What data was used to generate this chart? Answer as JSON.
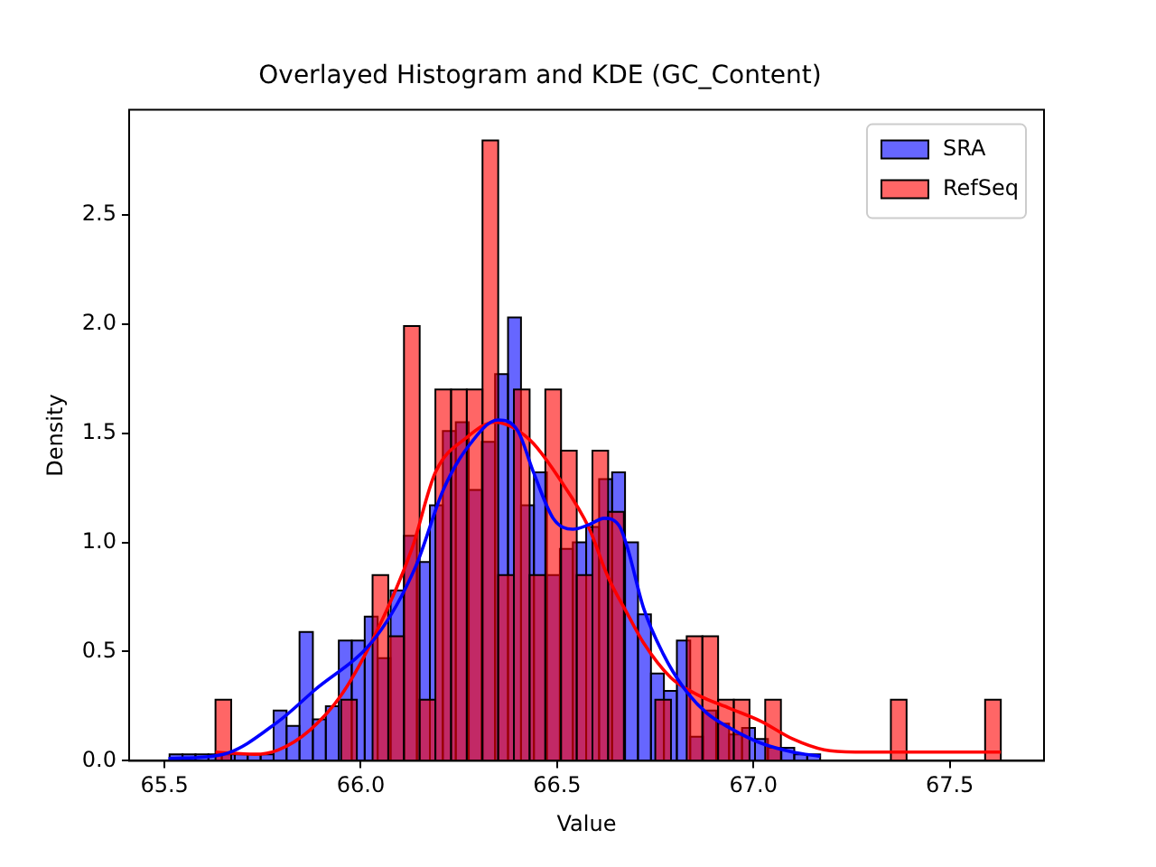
{
  "chart_data": {
    "type": "histogram",
    "title": "Overlayed Histogram and KDE (GC_Content)",
    "xlabel": "Value",
    "ylabel": "Density",
    "xlim": [
      65.41,
      67.74
    ],
    "ylim": [
      0,
      2.98
    ],
    "xticks": [
      {
        "value": 65.5,
        "label": "65.5"
      },
      {
        "value": 66,
        "label": "66.0"
      },
      {
        "value": 66.5,
        "label": "66.5"
      },
      {
        "value": 67,
        "label": "67.0"
      },
      {
        "value": 67.5,
        "label": "67.5"
      }
    ],
    "yticks": [
      {
        "value": 0,
        "label": "0.0"
      },
      {
        "value": 0.5,
        "label": "0.5"
      },
      {
        "value": 1,
        "label": "1.0"
      },
      {
        "value": 1.5,
        "label": "1.5"
      },
      {
        "value": 2,
        "label": "2.0"
      },
      {
        "value": 2.5,
        "label": "2.5"
      }
    ],
    "legend": "top right",
    "series": [
      {
        "name": "SRA",
        "type": "histogram",
        "color": "#0000ff",
        "bins": [
          65.513,
          65.546,
          65.579,
          65.612,
          65.646,
          65.679,
          65.712,
          65.745,
          65.778,
          65.811,
          65.844,
          65.878,
          65.911,
          65.944,
          65.977,
          66.01,
          66.043,
          66.076,
          66.11,
          66.143,
          66.176,
          66.209,
          66.242,
          66.275,
          66.308,
          66.342,
          66.375,
          66.408,
          66.441,
          66.474,
          66.507,
          66.54,
          66.574,
          66.607,
          66.64,
          66.673,
          66.706,
          66.739,
          66.772,
          66.805,
          66.839,
          66.872,
          66.905,
          66.938,
          66.971,
          67.004,
          67.037,
          67.071,
          67.104,
          67.137,
          67.17
        ],
        "values": [
          0.03,
          0.03,
          0.03,
          0.03,
          0.03,
          0.03,
          0.03,
          0.03,
          0.23,
          0.16,
          0.59,
          0.19,
          0.25,
          0.55,
          0.55,
          0.66,
          0.47,
          0.78,
          1.03,
          0.91,
          1.17,
          1.51,
          1.55,
          1.24,
          1.46,
          1.77,
          2.03,
          1.17,
          1.32,
          0.85,
          0.97,
          1.0,
          1.07,
          1.29,
          1.32,
          1.0,
          0.67,
          0.4,
          0.32,
          0.55,
          0.11,
          0.23,
          0.17,
          0.12,
          0.15,
          0.1,
          0.06,
          0.06,
          0.03,
          0.03
        ]
      },
      {
        "name": "RefSeq",
        "type": "histogram",
        "color": "#ff0000",
        "bins": [
          65.63,
          65.67,
          65.71,
          65.75,
          65.79,
          65.83,
          65.87,
          65.91,
          65.95,
          65.99,
          66.03,
          66.07,
          66.11,
          66.15,
          66.19,
          66.23,
          66.27,
          66.31,
          66.35,
          66.39,
          66.43,
          66.47,
          66.51,
          66.55,
          66.59,
          66.63,
          66.67,
          66.71,
          66.75,
          66.79,
          66.83,
          66.87,
          66.91,
          66.95,
          66.99,
          67.03,
          67.07,
          67.11,
          67.15,
          67.19,
          67.23,
          67.27,
          67.31,
          67.35,
          67.39,
          67.43,
          67.47,
          67.51,
          67.55,
          67.59,
          67.63
        ],
        "values": [
          0.28,
          0,
          0,
          0,
          0,
          0,
          0,
          0,
          0.28,
          0,
          0.85,
          0.57,
          1.99,
          0.28,
          1.7,
          1.7,
          1.7,
          2.84,
          0.85,
          1.7,
          0.85,
          1.7,
          1.42,
          0.85,
          1.42,
          1.14,
          0,
          0,
          0.28,
          0,
          0.57,
          0.57,
          0.28,
          0.28,
          0,
          0.28,
          0,
          0,
          0,
          0,
          0,
          0,
          0,
          0.28,
          0,
          0,
          0,
          0,
          0,
          0.28
        ]
      },
      {
        "type": "line",
        "color": "#0000ff",
        "x": [
          65.51,
          65.65,
          65.79,
          65.88,
          66.04,
          66.14,
          66.21,
          66.27,
          66.35,
          66.4,
          66.44,
          66.49,
          66.54,
          66.58,
          66.62,
          66.66,
          66.68,
          66.72,
          66.77,
          66.82,
          66.88,
          66.94,
          67.02,
          67.1,
          67.17
        ],
        "values": [
          0.01,
          0.03,
          0.18,
          0.32,
          0.57,
          0.89,
          1.24,
          1.43,
          1.56,
          1.51,
          1.32,
          1.11,
          1.06,
          1.08,
          1.11,
          1.07,
          0.97,
          0.7,
          0.49,
          0.34,
          0.22,
          0.15,
          0.08,
          0.04,
          0.02
        ]
      },
      {
        "type": "line",
        "color": "#ff0000",
        "x": [
          65.63,
          65.73,
          65.79,
          65.87,
          65.95,
          66.04,
          66.13,
          66.19,
          66.27,
          66.34,
          66.43,
          66.51,
          66.58,
          66.63,
          66.68,
          66.72,
          66.79,
          66.86,
          66.94,
          67.02,
          67.1,
          67.18,
          67.26,
          67.41,
          67.63
        ],
        "values": [
          0.04,
          0.03,
          0.05,
          0.14,
          0.3,
          0.59,
          0.97,
          1.32,
          1.48,
          1.55,
          1.47,
          1.28,
          1.07,
          0.84,
          0.67,
          0.54,
          0.38,
          0.3,
          0.24,
          0.18,
          0.1,
          0.05,
          0.04,
          0.04,
          0.04
        ]
      }
    ]
  }
}
